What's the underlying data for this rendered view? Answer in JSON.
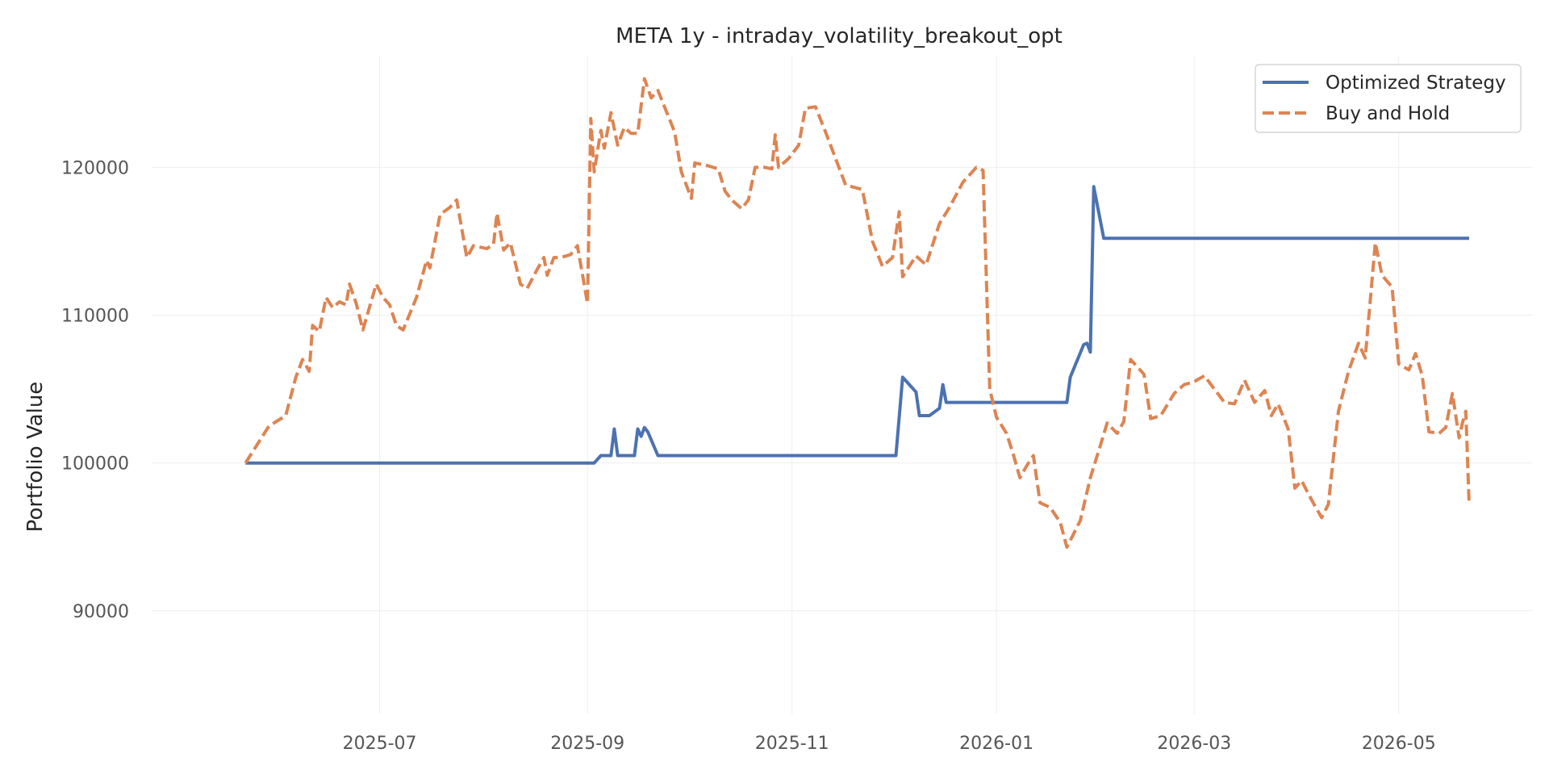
{
  "chart_data": {
    "type": "line",
    "title": "META 1y - intraday_volatility_breakout_opt",
    "xlabel": "",
    "ylabel": "Portfolio Value",
    "x_ticks": [
      "2025-07",
      "2025-09",
      "2025-11",
      "2026-01",
      "2026-03",
      "2026-05"
    ],
    "y_ticks": [
      90000,
      100000,
      110000,
      120000
    ],
    "xlim": [
      "2025-04-24",
      "2026-06-10"
    ],
    "ylim": [
      83000,
      127500
    ],
    "grid": true,
    "legend_position": "top-right",
    "series": [
      {
        "name": "Optimized Strategy",
        "color": "#4C72B0",
        "style": "solid",
        "points": [
          [
            "2025-05-22",
            100000
          ],
          [
            "2025-09-03",
            100000
          ],
          [
            "2025-09-05",
            100500
          ],
          [
            "2025-09-08",
            100500
          ],
          [
            "2025-09-09",
            102300
          ],
          [
            "2025-09-10",
            100500
          ],
          [
            "2025-09-15",
            100500
          ],
          [
            "2025-09-16",
            102300
          ],
          [
            "2025-09-17",
            101800
          ],
          [
            "2025-09-18",
            102400
          ],
          [
            "2025-09-19",
            102100
          ],
          [
            "2025-09-22",
            100500
          ],
          [
            "2025-12-02",
            100500
          ],
          [
            "2025-12-04",
            105800
          ],
          [
            "2025-12-08",
            104800
          ],
          [
            "2025-12-09",
            103200
          ],
          [
            "2025-12-12",
            103200
          ],
          [
            "2025-12-15",
            103700
          ],
          [
            "2025-12-16",
            105300
          ],
          [
            "2025-12-17",
            104100
          ],
          [
            "2026-01-22",
            104100
          ],
          [
            "2026-01-23",
            105800
          ],
          [
            "2026-01-27",
            108000
          ],
          [
            "2026-01-28",
            108100
          ],
          [
            "2026-01-29",
            107500
          ],
          [
            "2026-01-30",
            118700
          ],
          [
            "2026-02-02",
            115200
          ],
          [
            "2026-05-22",
            115200
          ]
        ]
      },
      {
        "name": "Buy and Hold",
        "color": "#DD8452",
        "style": "dashed",
        "points": [
          [
            "2025-05-22",
            100000
          ],
          [
            "2025-05-29",
            102500
          ],
          [
            "2025-06-03",
            103200
          ],
          [
            "2025-06-06",
            105800
          ],
          [
            "2025-06-08",
            107000
          ],
          [
            "2025-06-10",
            106200
          ],
          [
            "2025-06-11",
            109300
          ],
          [
            "2025-06-13",
            108900
          ],
          [
            "2025-06-15",
            111200
          ],
          [
            "2025-06-17",
            110500
          ],
          [
            "2025-06-19",
            110900
          ],
          [
            "2025-06-21",
            110700
          ],
          [
            "2025-06-22",
            112100
          ],
          [
            "2025-06-24",
            110800
          ],
          [
            "2025-06-26",
            109000
          ],
          [
            "2025-06-30",
            112100
          ],
          [
            "2025-07-02",
            111200
          ],
          [
            "2025-07-04",
            110700
          ],
          [
            "2025-07-06",
            109300
          ],
          [
            "2025-07-08",
            109000
          ],
          [
            "2025-07-12",
            111200
          ],
          [
            "2025-07-15",
            113700
          ],
          [
            "2025-07-16",
            113200
          ],
          [
            "2025-07-19",
            116800
          ],
          [
            "2025-07-22",
            117300
          ],
          [
            "2025-07-24",
            117800
          ],
          [
            "2025-07-27",
            113900
          ],
          [
            "2025-07-29",
            114700
          ],
          [
            "2025-08-02",
            114500
          ],
          [
            "2025-08-04",
            114800
          ],
          [
            "2025-08-05",
            116900
          ],
          [
            "2025-08-07",
            114400
          ],
          [
            "2025-08-09",
            114900
          ],
          [
            "2025-08-12",
            112100
          ],
          [
            "2025-08-14",
            111800
          ],
          [
            "2025-08-17",
            113100
          ],
          [
            "2025-08-19",
            113900
          ],
          [
            "2025-08-20",
            112700
          ],
          [
            "2025-08-22",
            113900
          ],
          [
            "2025-08-24",
            113900
          ],
          [
            "2025-08-27",
            114100
          ],
          [
            "2025-08-29",
            114700
          ],
          [
            "2025-09-01",
            110800
          ],
          [
            "2025-09-02",
            123300
          ],
          [
            "2025-09-03",
            119700
          ],
          [
            "2025-09-05",
            122500
          ],
          [
            "2025-09-06",
            121300
          ],
          [
            "2025-09-08",
            123700
          ],
          [
            "2025-09-10",
            121500
          ],
          [
            "2025-09-12",
            122700
          ],
          [
            "2025-09-14",
            122300
          ],
          [
            "2025-09-16",
            122300
          ],
          [
            "2025-09-18",
            126000
          ],
          [
            "2025-09-20",
            124700
          ],
          [
            "2025-09-22",
            125200
          ],
          [
            "2025-09-27",
            122400
          ],
          [
            "2025-09-29",
            119700
          ],
          [
            "2025-10-02",
            117900
          ],
          [
            "2025-10-03",
            120300
          ],
          [
            "2025-10-07",
            120100
          ],
          [
            "2025-10-10",
            119900
          ],
          [
            "2025-10-12",
            118400
          ],
          [
            "2025-10-14",
            117800
          ],
          [
            "2025-10-17",
            117200
          ],
          [
            "2025-10-19",
            117800
          ],
          [
            "2025-10-21",
            120000
          ],
          [
            "2025-10-24",
            120000
          ],
          [
            "2025-10-26",
            119900
          ],
          [
            "2025-10-27",
            122200
          ],
          [
            "2025-10-28",
            120000
          ],
          [
            "2025-10-31",
            120600
          ],
          [
            "2025-11-03",
            121500
          ],
          [
            "2025-11-05",
            124000
          ],
          [
            "2025-11-08",
            124100
          ],
          [
            "2025-11-11",
            122400
          ],
          [
            "2025-11-14",
            120600
          ],
          [
            "2025-11-17",
            118800
          ],
          [
            "2025-11-22",
            118500
          ],
          [
            "2025-11-25",
            115000
          ],
          [
            "2025-11-28",
            113300
          ],
          [
            "2025-12-01",
            113900
          ],
          [
            "2025-12-03",
            117000
          ],
          [
            "2025-12-04",
            112600
          ],
          [
            "2025-12-08",
            114000
          ],
          [
            "2025-12-11",
            113400
          ],
          [
            "2025-12-15",
            116200
          ],
          [
            "2025-12-18",
            117300
          ],
          [
            "2025-12-22",
            119000
          ],
          [
            "2025-12-26",
            120000
          ],
          [
            "2025-12-28",
            119800
          ],
          [
            "2025-12-30",
            105000
          ],
          [
            "2026-01-01",
            103100
          ],
          [
            "2026-01-04",
            102000
          ],
          [
            "2026-01-06",
            100600
          ],
          [
            "2026-01-08",
            99000
          ],
          [
            "2026-01-10",
            99800
          ],
          [
            "2026-01-12",
            100500
          ],
          [
            "2026-01-14",
            97300
          ],
          [
            "2026-01-17",
            97000
          ],
          [
            "2026-01-20",
            96000
          ],
          [
            "2026-01-22",
            94300
          ],
          [
            "2026-01-26",
            96100
          ],
          [
            "2026-01-29",
            99000
          ],
          [
            "2026-02-01",
            101200
          ],
          [
            "2026-02-03",
            102700
          ],
          [
            "2026-02-06",
            102000
          ],
          [
            "2026-02-08",
            102800
          ],
          [
            "2026-02-10",
            107000
          ],
          [
            "2026-02-14",
            106000
          ],
          [
            "2026-02-16",
            103000
          ],
          [
            "2026-02-19",
            103200
          ],
          [
            "2026-02-23",
            104700
          ],
          [
            "2026-02-26",
            105300
          ],
          [
            "2026-03-01",
            105500
          ],
          [
            "2026-03-04",
            105900
          ],
          [
            "2026-03-07",
            105000
          ],
          [
            "2026-03-10",
            104100
          ],
          [
            "2026-03-13",
            104000
          ],
          [
            "2026-03-16",
            105600
          ],
          [
            "2026-03-19",
            104100
          ],
          [
            "2026-03-22",
            104900
          ],
          [
            "2026-03-24",
            103200
          ],
          [
            "2026-03-26",
            104000
          ],
          [
            "2026-03-29",
            102300
          ],
          [
            "2026-03-31",
            98300
          ],
          [
            "2026-04-02",
            98800
          ],
          [
            "2026-04-05",
            97500
          ],
          [
            "2026-04-08",
            96300
          ],
          [
            "2026-04-10",
            97200
          ],
          [
            "2026-04-13",
            103500
          ],
          [
            "2026-04-16",
            106200
          ],
          [
            "2026-04-19",
            108100
          ],
          [
            "2026-04-21",
            107100
          ],
          [
            "2026-04-24",
            114900
          ],
          [
            "2026-04-26",
            112700
          ],
          [
            "2026-04-29",
            111900
          ],
          [
            "2026-05-01",
            106700
          ],
          [
            "2026-05-04",
            106300
          ],
          [
            "2026-05-06",
            107400
          ],
          [
            "2026-05-08",
            105900
          ],
          [
            "2026-05-10",
            102100
          ],
          [
            "2026-05-13",
            102000
          ],
          [
            "2026-05-15",
            102400
          ],
          [
            "2026-05-17",
            104700
          ],
          [
            "2026-05-19",
            101700
          ],
          [
            "2026-05-20",
            102700
          ],
          [
            "2026-05-21",
            103500
          ],
          [
            "2026-05-22",
            97200
          ]
        ]
      }
    ]
  }
}
